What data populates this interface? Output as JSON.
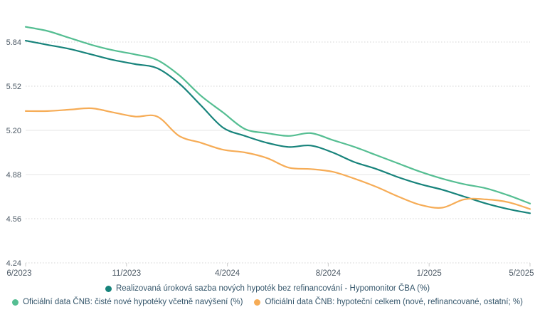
{
  "chart_data": {
    "type": "line",
    "title": "",
    "xlabel": "",
    "ylabel": "",
    "grid": "on",
    "legend_position": "bottom",
    "y_min": 4.24,
    "y_grid_step": 0.32,
    "y_tick_labels": [
      "4.24",
      "4.56",
      "4.88",
      "5.20",
      "5.52",
      "5.84"
    ],
    "x_tick_labels": [
      "6/2023",
      "11/2023",
      "4/2024",
      "8/2024",
      "1/2025",
      "5/2025"
    ],
    "x": [
      "6/2023",
      "7/2023",
      "8/2023",
      "9/2023",
      "10/2023",
      "11/2023",
      "12/2023",
      "1/2024",
      "2/2024",
      "3/2024",
      "4/2024",
      "5/2024",
      "6/2024",
      "7/2024",
      "8/2024",
      "9/2024",
      "10/2024",
      "11/2024",
      "12/2024",
      "1/2025",
      "2/2025",
      "3/2025",
      "4/2025",
      "5/2025"
    ],
    "series": [
      {
        "name": "Realizovaná úroková sazba nových hypoték bez refinancování - Hypomonitor ČBA (%)",
        "color": "#17837b",
        "values": [
          5.85,
          5.82,
          5.79,
          5.75,
          5.71,
          5.68,
          5.65,
          5.54,
          5.38,
          5.22,
          5.16,
          5.11,
          5.08,
          5.09,
          5.04,
          4.97,
          4.92,
          4.86,
          4.81,
          4.77,
          4.72,
          4.67,
          4.63,
          4.6
        ]
      },
      {
        "name": "Oficiální data ČNB: čisté nové hypotéky včetně navýšení (%)",
        "color": "#55be92",
        "values": [
          5.95,
          5.92,
          5.87,
          5.82,
          5.78,
          5.75,
          5.71,
          5.6,
          5.45,
          5.33,
          5.21,
          5.18,
          5.16,
          5.18,
          5.13,
          5.08,
          5.02,
          4.96,
          4.9,
          4.85,
          4.81,
          4.78,
          4.73,
          4.67
        ]
      },
      {
        "name": "Oficiální data ČNB: hypoteční celkem (nové, refinancované, ostatní; %)",
        "color": "#f6ac56",
        "values": [
          5.34,
          5.34,
          5.35,
          5.36,
          5.33,
          5.3,
          5.3,
          5.16,
          5.11,
          5.06,
          5.04,
          5.0,
          4.93,
          4.92,
          4.9,
          4.85,
          4.79,
          4.72,
          4.66,
          4.64,
          4.7,
          4.7,
          4.68,
          4.63
        ]
      }
    ],
    "axis_text_color": "#4d5a66",
    "gridline_solid_color": "#e4e4e4",
    "gridline_dotted_color": "#d4d4d4",
    "tick_mark_color": "#cccccc"
  }
}
